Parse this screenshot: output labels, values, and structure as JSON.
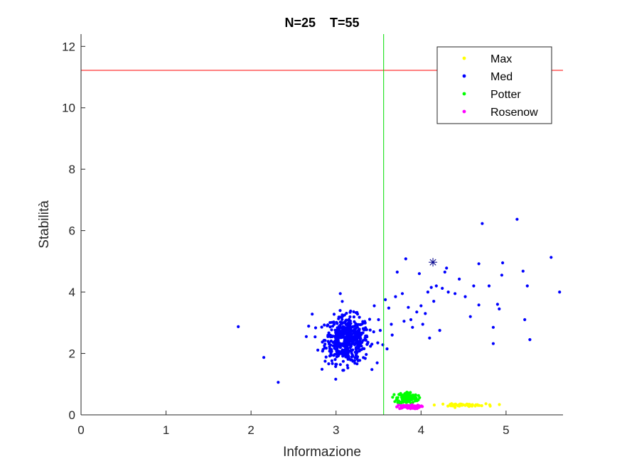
{
  "chart_data": {
    "type": "scatter",
    "title": "N=25    T=55",
    "xlabel": "Informazione",
    "ylabel": "Stabilità",
    "xlim": [
      0,
      5.67
    ],
    "ylim": [
      0,
      12.4
    ],
    "xticks": [
      0,
      1,
      2,
      3,
      4,
      5
    ],
    "yticks": [
      0,
      2,
      4,
      6,
      8,
      10,
      12
    ],
    "grid": false,
    "legend_position": "top-right",
    "reference_lines": {
      "horizontal": {
        "y": 11.22,
        "color": "#ff0000"
      },
      "vertical": {
        "x": 3.56,
        "color": "#00dd00"
      }
    },
    "star_marker": {
      "x": 4.14,
      "y": 4.97,
      "color": "#00008b"
    },
    "series": [
      {
        "name": "Max",
        "color": "#ffff00",
        "cluster": {
          "cx": 4.48,
          "cy": 0.32,
          "sx": 0.14,
          "sy": 0.02,
          "n": 60
        },
        "points": []
      },
      {
        "name": "Med",
        "color": "#0000ff",
        "cluster": {
          "cx": 3.13,
          "cy": 2.45,
          "sx": 0.13,
          "sy": 0.38,
          "n": 520
        },
        "points": [
          [
            1.85,
            2.87
          ],
          [
            2.15,
            1.87
          ],
          [
            2.32,
            1.06
          ],
          [
            2.65,
            2.55
          ],
          [
            2.72,
            3.28
          ],
          [
            3.05,
            3.95
          ],
          [
            3.45,
            3.55
          ],
          [
            3.52,
            2.75
          ],
          [
            3.55,
            2.28
          ],
          [
            3.6,
            2.15
          ],
          [
            3.62,
            3.48
          ],
          [
            3.65,
            2.95
          ],
          [
            3.7,
            3.85
          ],
          [
            3.72,
            4.65
          ],
          [
            3.78,
            3.95
          ],
          [
            3.8,
            3.05
          ],
          [
            3.82,
            5.08
          ],
          [
            3.85,
            3.5
          ],
          [
            3.88,
            3.1
          ],
          [
            3.9,
            2.85
          ],
          [
            3.95,
            3.35
          ],
          [
            3.98,
            4.6
          ],
          [
            4.0,
            3.55
          ],
          [
            4.05,
            3.3
          ],
          [
            4.08,
            4.0
          ],
          [
            4.1,
            2.5
          ],
          [
            4.12,
            4.15
          ],
          [
            4.15,
            3.7
          ],
          [
            4.18,
            4.2
          ],
          [
            4.22,
            2.75
          ],
          [
            4.28,
            4.65
          ],
          [
            4.3,
            4.78
          ],
          [
            4.32,
            4.0
          ],
          [
            4.45,
            4.42
          ],
          [
            4.52,
            3.85
          ],
          [
            4.58,
            3.2
          ],
          [
            4.62,
            4.2
          ],
          [
            4.68,
            4.92
          ],
          [
            4.72,
            6.23
          ],
          [
            4.8,
            4.2
          ],
          [
            4.85,
            2.32
          ],
          [
            4.9,
            3.6
          ],
          [
            4.92,
            3.45
          ],
          [
            4.96,
            4.95
          ],
          [
            5.13,
            6.37
          ],
          [
            5.2,
            4.68
          ],
          [
            5.22,
            3.1
          ],
          [
            5.25,
            4.2
          ],
          [
            5.28,
            2.45
          ],
          [
            5.53,
            5.13
          ],
          [
            5.63,
            4.0
          ],
          [
            4.95,
            4.55
          ],
          [
            3.5,
            3.1
          ],
          [
            3.58,
            3.75
          ],
          [
            3.66,
            2.6
          ],
          [
            4.02,
            2.95
          ],
          [
            4.25,
            4.12
          ],
          [
            4.4,
            3.95
          ],
          [
            4.68,
            3.58
          ],
          [
            4.85,
            2.85
          ]
        ]
      },
      {
        "name": "Potter",
        "color": "#00ff00",
        "cluster": {
          "cx": 3.84,
          "cy": 0.55,
          "sx": 0.06,
          "sy": 0.1,
          "n": 140
        },
        "points": []
      },
      {
        "name": "Rosenow",
        "color": "#ff00ff",
        "cluster": {
          "cx": 3.85,
          "cy": 0.26,
          "sx": 0.07,
          "sy": 0.03,
          "n": 90
        },
        "points": []
      }
    ]
  }
}
